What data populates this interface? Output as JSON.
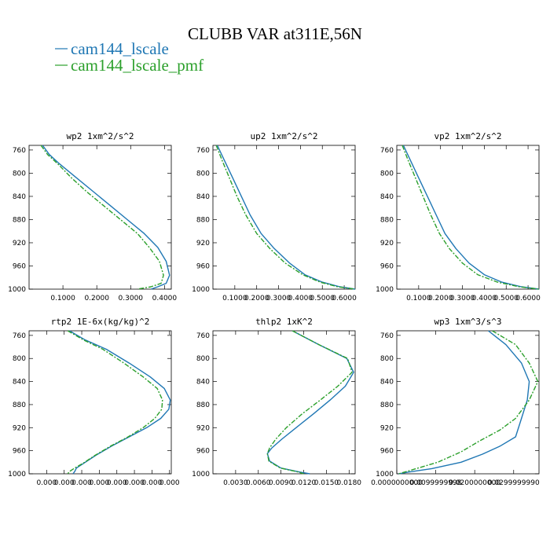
{
  "figure": {
    "title": "CLUBB VAR at311E,56N",
    "legend": [
      {
        "label": "cam144_lscale",
        "color": "#1f77b4"
      },
      {
        "label": "cam144_lscale_pmf",
        "color": "#2ca02c"
      }
    ]
  },
  "chart_data": [
    {
      "type": "line",
      "title": "wp2 1xm^2/s^2",
      "xlim": [
        0,
        0.42
      ],
      "ylim": [
        1000,
        752
      ],
      "y_reversed": true,
      "xticks": [
        0.1,
        0.2,
        0.3,
        0.4
      ],
      "xtick_labels": [
        "0.1000",
        "0.2000",
        "0.3000",
        "0.4000"
      ],
      "yticks": [
        760,
        800,
        840,
        880,
        920,
        960,
        1000
      ],
      "ytick_labels": [
        "760",
        "800",
        "840",
        "880",
        "920",
        "960",
        "1000"
      ],
      "series": [
        {
          "name": "cam144_lscale",
          "color": "#1f77b4",
          "dash": "",
          "x": [
            0.04,
            0.06,
            0.09,
            0.14,
            0.19,
            0.24,
            0.29,
            0.34,
            0.38,
            0.405,
            0.415,
            0.405,
            0.38,
            0.36
          ],
          "y": [
            752,
            768,
            784,
            808,
            832,
            856,
            880,
            904,
            928,
            952,
            976,
            990,
            996,
            1000
          ]
        },
        {
          "name": "cam144_lscale_pmf",
          "color": "#2ca02c",
          "dash": "6,2,2,2",
          "x": [
            0.035,
            0.055,
            0.085,
            0.125,
            0.17,
            0.22,
            0.27,
            0.32,
            0.355,
            0.385,
            0.397,
            0.39,
            0.36,
            0.32
          ],
          "y": [
            752,
            768,
            784,
            808,
            832,
            856,
            880,
            904,
            928,
            952,
            976,
            990,
            996,
            1000
          ]
        }
      ]
    },
    {
      "type": "line",
      "title": "up2 1xm^2/s^2",
      "xlim": [
        0,
        0.65
      ],
      "ylim": [
        1000,
        752
      ],
      "y_reversed": true,
      "xticks": [
        0.1,
        0.2,
        0.3,
        0.4,
        0.5,
        0.6
      ],
      "xtick_labels": [
        "0.1000",
        "0.2000",
        "0.3000",
        "0.4000",
        "0.5000",
        "0.6000"
      ],
      "yticks": [
        760,
        800,
        840,
        880,
        920,
        960,
        1000
      ],
      "ytick_labels": [
        "760",
        "800",
        "840",
        "880",
        "920",
        "960",
        "1000"
      ],
      "series": [
        {
          "name": "cam144_lscale",
          "color": "#1f77b4",
          "dash": "",
          "x": [
            0.02,
            0.05,
            0.09,
            0.13,
            0.17,
            0.22,
            0.28,
            0.35,
            0.42,
            0.5,
            0.58,
            0.65
          ],
          "y": [
            752,
            776,
            808,
            840,
            872,
            904,
            930,
            955,
            975,
            988,
            996,
            1000
          ]
        },
        {
          "name": "cam144_lscale_pmf",
          "color": "#2ca02c",
          "dash": "6,2,2,2",
          "x": [
            0.015,
            0.04,
            0.075,
            0.11,
            0.15,
            0.2,
            0.26,
            0.33,
            0.41,
            0.49,
            0.57,
            0.65
          ],
          "y": [
            752,
            776,
            808,
            840,
            872,
            904,
            930,
            955,
            975,
            988,
            996,
            1000
          ]
        }
      ]
    },
    {
      "type": "line",
      "title": "vp2 1xm^2/s^2",
      "xlim": [
        0,
        0.65
      ],
      "ylim": [
        1000,
        752
      ],
      "y_reversed": true,
      "xticks": [
        0.1,
        0.2,
        0.3,
        0.4,
        0.5,
        0.6
      ],
      "xtick_labels": [
        "0.1000",
        "0.2000",
        "0.3000",
        "0.4000",
        "0.5000",
        "0.6000"
      ],
      "yticks": [
        760,
        800,
        840,
        880,
        920,
        960,
        1000
      ],
      "ytick_labels": [
        "760",
        "800",
        "840",
        "880",
        "920",
        "960",
        "1000"
      ],
      "series": [
        {
          "name": "cam144_lscale",
          "color": "#1f77b4",
          "dash": "",
          "x": [
            0.03,
            0.06,
            0.1,
            0.14,
            0.18,
            0.22,
            0.27,
            0.33,
            0.4,
            0.48,
            0.57,
            0.65
          ],
          "y": [
            752,
            776,
            808,
            840,
            872,
            904,
            930,
            955,
            975,
            988,
            996,
            1000
          ]
        },
        {
          "name": "cam144_lscale_pmf",
          "color": "#2ca02c",
          "dash": "6,2,2,2",
          "x": [
            0.025,
            0.05,
            0.085,
            0.12,
            0.155,
            0.195,
            0.24,
            0.3,
            0.37,
            0.46,
            0.56,
            0.65
          ],
          "y": [
            752,
            776,
            808,
            840,
            872,
            904,
            930,
            955,
            975,
            988,
            996,
            1000
          ]
        }
      ]
    },
    {
      "type": "line",
      "title": "rtp2 1E-6x(kg/kg)^2",
      "xlim": [
        0,
        4.05e-05
      ],
      "ylim": [
        1000,
        752
      ],
      "y_reversed": true,
      "xticks": [
        5e-06,
        1e-05,
        1.5e-05,
        2e-05,
        2.5e-05,
        3e-05,
        3.5e-05,
        4e-05
      ],
      "xtick_labels": [
        "0.000",
        "0.000",
        "0.000",
        "0.000",
        "0.000",
        "0.000",
        "0.000",
        "0.000"
      ],
      "yticks": [
        760,
        800,
        840,
        880,
        920,
        960,
        1000
      ],
      "ytick_labels": [
        "760",
        "800",
        "840",
        "880",
        "920",
        "960",
        "1000"
      ],
      "series": [
        {
          "name": "cam144_lscale",
          "color": "#1f77b4",
          "dash": "",
          "x": [
            1.15e-05,
            1.6e-05,
            2.2e-05,
            2.85e-05,
            3.45e-05,
            3.85e-05,
            4.02e-05,
            3.98e-05,
            3.75e-05,
            3.35e-05,
            2.85e-05,
            2.35e-05,
            1.9e-05,
            1.55e-05,
            1.35e-05,
            1.3e-05,
            1.25e-05
          ],
          "y": [
            752,
            768,
            784,
            808,
            832,
            852,
            872,
            888,
            904,
            920,
            936,
            952,
            968,
            982,
            990,
            996,
            1000
          ]
        },
        {
          "name": "cam144_lscale_pmf",
          "color": "#2ca02c",
          "dash": "6,2,2,2",
          "x": [
            1.1e-05,
            1.55e-05,
            2.1e-05,
            2.7e-05,
            3.25e-05,
            3.65e-05,
            3.8e-05,
            3.78e-05,
            3.58e-05,
            3.25e-05,
            2.82e-05,
            2.32e-05,
            1.88e-05,
            1.53e-05,
            1.3e-05,
            1.15e-05,
            1.1e-05
          ],
          "y": [
            752,
            768,
            784,
            808,
            832,
            852,
            872,
            888,
            904,
            920,
            936,
            952,
            968,
            982,
            990,
            996,
            1000
          ]
        }
      ]
    },
    {
      "type": "line",
      "title": "thlp2 1xK^2",
      "xlim": [
        0,
        0.0188
      ],
      "ylim": [
        1000,
        752
      ],
      "y_reversed": true,
      "xticks": [
        0.003,
        0.006,
        0.009,
        0.012,
        0.015,
        0.018
      ],
      "xtick_labels": [
        "0.0030",
        "0.0060",
        "0.0090",
        "0.0120",
        "0.0150",
        "0.0180"
      ],
      "yticks": [
        760,
        800,
        840,
        880,
        920,
        960,
        1000
      ],
      "ytick_labels": [
        "760",
        "800",
        "840",
        "880",
        "920",
        "960",
        "1000"
      ],
      "series": [
        {
          "name": "cam144_lscale",
          "color": "#1f77b4",
          "dash": "",
          "x": [
            0.0105,
            0.014,
            0.0177,
            0.0186,
            0.0175,
            0.0155,
            0.0133,
            0.011,
            0.0091,
            0.0078,
            0.0072,
            0.0075,
            0.009,
            0.0115,
            0.0128
          ],
          "y": [
            752,
            776,
            800,
            824,
            848,
            872,
            896,
            920,
            940,
            955,
            965,
            978,
            990,
            997,
            1000
          ]
        },
        {
          "name": "cam144_lscale_pmf",
          "color": "#2ca02c",
          "dash": "6,2,2,2",
          "x": [
            0.0105,
            0.014,
            0.0178,
            0.0184,
            0.0165,
            0.0142,
            0.0118,
            0.0097,
            0.0083,
            0.0075,
            0.0072,
            0.0074,
            0.0089,
            0.0113,
            0.012
          ],
          "y": [
            752,
            776,
            800,
            824,
            848,
            872,
            896,
            920,
            940,
            955,
            965,
            978,
            990,
            997,
            1000
          ]
        }
      ]
    },
    {
      "type": "line",
      "title": "wp3 1xm^3/s^3",
      "xlim": [
        0,
        0.0365
      ],
      "ylim": [
        1000,
        752
      ],
      "y_reversed": true,
      "xticks": [
        0,
        0.01,
        0.02,
        0.03
      ],
      "xtick_labels": [
        "0.0000000000",
        "0.0099999998",
        "0.0200000000",
        "0.0299999990"
      ],
      "yticks": [
        760,
        800,
        840,
        880,
        920,
        960,
        1000
      ],
      "ytick_labels": [
        "760",
        "800",
        "840",
        "880",
        "920",
        "960",
        "1000"
      ],
      "series": [
        {
          "name": "cam144_lscale",
          "color": "#1f77b4",
          "dash": "",
          "x": [
            0.0235,
            0.028,
            0.032,
            0.034,
            0.0335,
            0.032,
            0.0305,
            0.0265,
            0.022,
            0.0165,
            0.009,
            0.003,
            0.0005
          ],
          "y": [
            752,
            776,
            808,
            840,
            872,
            904,
            936,
            952,
            966,
            980,
            991,
            997,
            1000
          ]
        },
        {
          "name": "cam144_lscale_pmf",
          "color": "#2ca02c",
          "dash": "6,2,2,2",
          "x": [
            0.0245,
            0.0305,
            0.034,
            0.0362,
            0.034,
            0.0305,
            0.0265,
            0.021,
            0.0165,
            0.0105,
            0.005,
            0.002,
            0.0005
          ],
          "y": [
            752,
            776,
            808,
            840,
            872,
            904,
            924,
            944,
            962,
            980,
            991,
            997,
            1000
          ]
        }
      ]
    }
  ]
}
